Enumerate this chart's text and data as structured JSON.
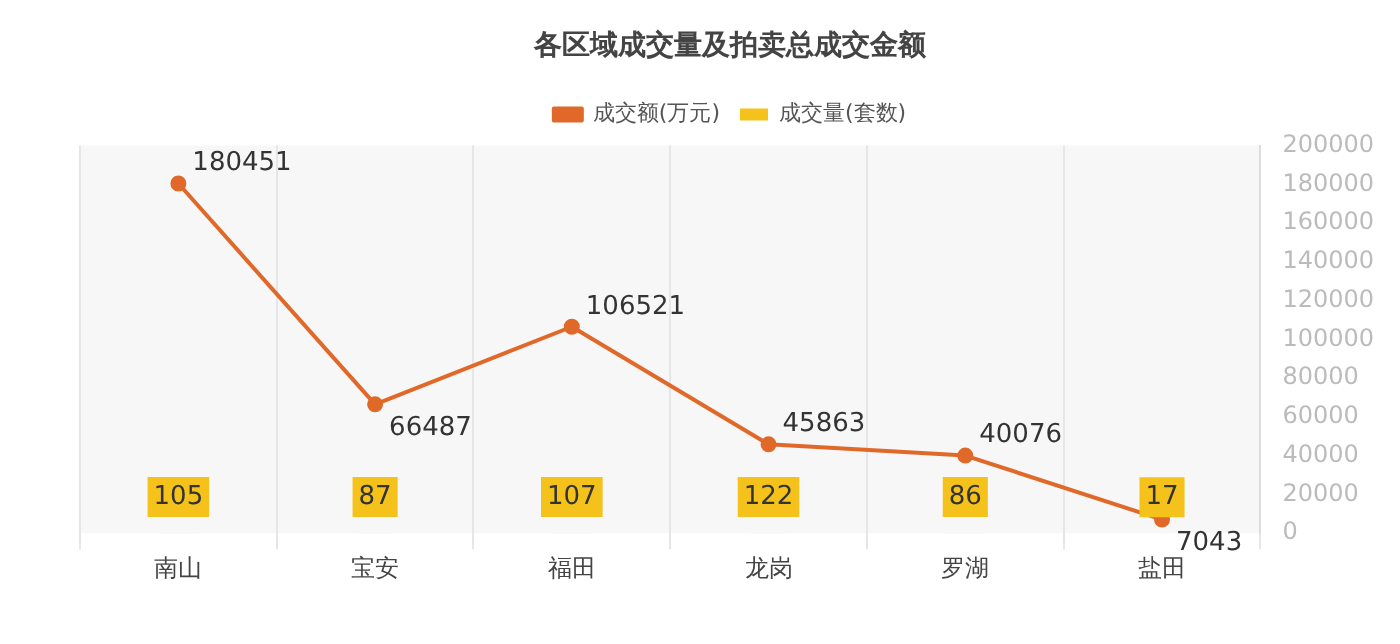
{
  "chart_data": {
    "type": "bar",
    "title": "各区域成交量及拍卖总成交金额",
    "categories": [
      "南山",
      "宝安",
      "福田",
      "龙岗",
      "罗湖",
      "盐田"
    ],
    "series": [
      {
        "name": "成交量(套数)",
        "color": "#f5c21b",
        "values": [
          105,
          87,
          107,
          122,
          86,
          17
        ]
      },
      {
        "name": "成交额(万元)",
        "type": "line",
        "color": "#e0692a",
        "values": [
          180451,
          66487,
          106521,
          45863,
          40076,
          7043
        ]
      }
    ],
    "ylim": [
      0,
      200000
    ],
    "yticks": [
      0,
      20000,
      40000,
      60000,
      80000,
      100000,
      120000,
      140000,
      160000,
      180000,
      200000
    ],
    "grid": "x",
    "legend": "top",
    "marker": "circle",
    "data_labels": true
  }
}
